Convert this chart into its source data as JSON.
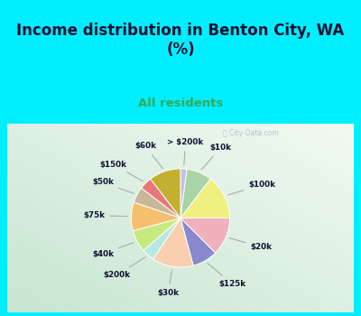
{
  "title": "Income distribution in Benton City, WA\n(%)",
  "subtitle": "All residents",
  "labels": [
    "> $200k",
    "$10k",
    "$100k",
    "$20k",
    "$125k",
    "$30k",
    "$200k",
    "$40k",
    "$75k",
    "$50k",
    "$150k",
    "$60k"
  ],
  "values": [
    2,
    8,
    14,
    12,
    8,
    13,
    4,
    7,
    9,
    5,
    4,
    10
  ],
  "colors": [
    "#c0c0e8",
    "#a8d4a8",
    "#f0f080",
    "#f0b0bc",
    "#8888cc",
    "#f8d0b0",
    "#b8e8e0",
    "#c8e880",
    "#f4c070",
    "#c8b898",
    "#e87878",
    "#c4b030"
  ],
  "bg_cyan": "#00eeff",
  "bg_chart_color": "#c8e8cc",
  "title_color": "#111133",
  "subtitle_color": "#33aa55",
  "startangle": 90
}
